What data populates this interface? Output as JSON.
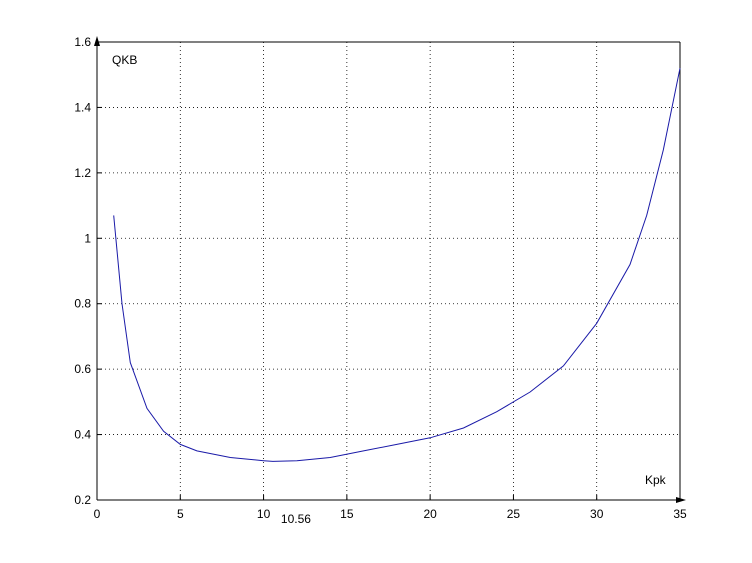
{
  "chart_data": {
    "type": "line",
    "y_label": "QKB",
    "x_label": "Kpk",
    "annotations": [
      {
        "text": "10.56",
        "x": 10.56
      }
    ],
    "x": [
      1,
      1.5,
      2,
      3,
      4,
      5,
      6,
      8,
      10,
      10.56,
      12,
      14,
      16,
      18,
      20,
      22,
      24,
      26,
      28,
      30,
      32,
      33,
      34,
      35
    ],
    "values": [
      1.07,
      0.8,
      0.62,
      0.48,
      0.41,
      0.37,
      0.35,
      0.33,
      0.32,
      0.318,
      0.32,
      0.33,
      0.35,
      0.37,
      0.39,
      0.42,
      0.47,
      0.53,
      0.61,
      0.74,
      0.92,
      1.07,
      1.27,
      1.52
    ],
    "color": "#1a1aa8",
    "xlim": [
      0,
      35
    ],
    "xticks": [
      0,
      5,
      10,
      15,
      20,
      25,
      30,
      35
    ],
    "ylim": [
      0.2,
      1.6
    ],
    "yticks": [
      0.2,
      0.4,
      0.6,
      0.8,
      1,
      1.2,
      1.4,
      1.6
    ],
    "grid": true
  }
}
